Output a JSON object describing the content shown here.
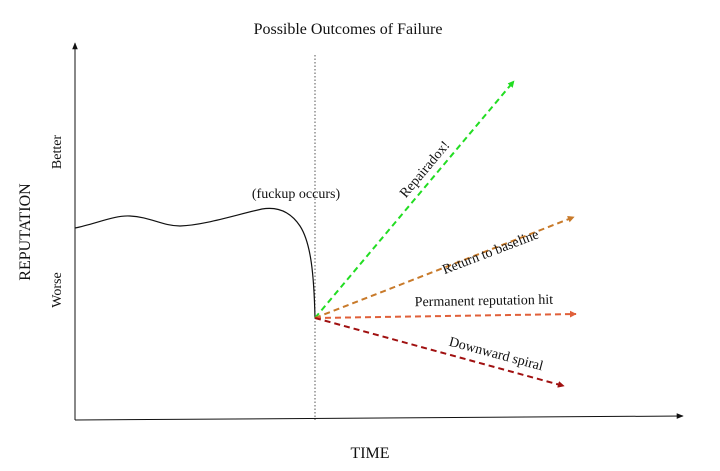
{
  "diagram": {
    "title": "Possible Outcomes of Failure",
    "x_axis_label": "TIME",
    "y_axis_label": "REPUTATION",
    "y_tick_high": "Better",
    "y_tick_low": "Worse",
    "event_label": "(fuckup occurs)",
    "outcomes": [
      {
        "label": "Repairadox!",
        "color": "#22dd22"
      },
      {
        "label": "Return to baseline",
        "color": "#c87a2a"
      },
      {
        "label": "Permanent reputation hit",
        "color": "#e0603a"
      },
      {
        "label": "Downward spiral",
        "color": "#a01010"
      }
    ],
    "curve_color": "#111111",
    "axis_color": "#111111"
  }
}
